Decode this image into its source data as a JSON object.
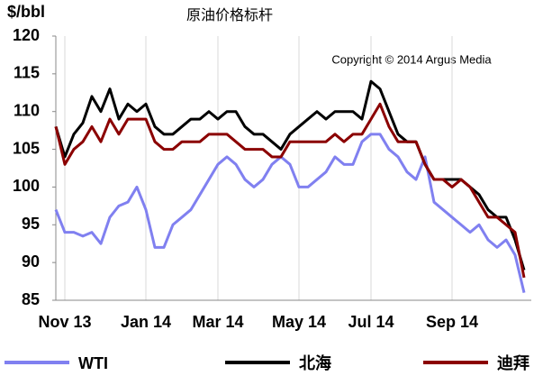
{
  "chart_data": {
    "type": "line",
    "title": "原油价格标杆",
    "y_label": "$/bbl",
    "annotation": "Copyright © 2014 Argus Media",
    "categories": [
      null,
      "Nov 13",
      null,
      null,
      null,
      null,
      null,
      null,
      null,
      null,
      "Jan 14",
      null,
      null,
      null,
      null,
      null,
      null,
      null,
      "Mar 14",
      null,
      null,
      null,
      null,
      null,
      null,
      null,
      null,
      "May 14",
      null,
      null,
      null,
      null,
      null,
      null,
      null,
      "Jul 14",
      null,
      null,
      null,
      null,
      null,
      null,
      null,
      null,
      "Sep 14",
      null,
      null,
      null,
      null,
      null,
      null,
      null,
      null
    ],
    "series": [
      {
        "name": "WTI",
        "color": "#8080f0",
        "values": [
          97,
          94,
          94,
          93.5,
          94,
          92.5,
          96,
          97.5,
          98,
          100,
          97,
          92,
          92,
          95,
          96,
          97,
          99,
          101,
          103,
          104,
          103,
          101,
          100,
          101,
          103,
          104,
          103,
          100,
          100,
          101,
          102,
          104,
          103,
          103,
          106,
          107,
          107,
          105,
          104,
          102,
          101,
          104,
          98,
          97,
          96,
          95,
          94,
          95,
          93,
          92,
          93,
          91,
          86
        ]
      },
      {
        "name": "北海",
        "color": "#000000",
        "values": [
          108,
          104,
          107,
          108.5,
          112,
          110,
          113,
          109,
          111,
          110,
          111,
          108,
          107,
          107,
          108,
          109,
          109,
          110,
          109,
          110,
          110,
          108,
          107,
          107,
          106,
          105,
          107,
          108,
          109,
          110,
          109,
          110,
          110,
          110,
          109,
          114,
          113,
          110,
          107,
          106,
          106,
          103,
          101,
          101,
          101,
          101,
          100,
          99,
          97,
          96,
          96,
          93,
          89
        ]
      },
      {
        "name": "迪拜",
        "color": "#8b0000",
        "values": [
          108,
          103,
          105,
          106,
          108,
          106,
          109,
          107,
          109,
          109,
          109,
          106,
          105,
          105,
          106,
          106,
          106,
          107,
          107,
          107,
          106,
          105,
          105,
          105,
          104,
          104,
          106,
          106,
          106,
          106,
          106,
          107,
          106,
          107,
          107,
          109,
          111,
          108,
          106,
          106,
          106,
          103,
          101,
          101,
          100,
          101,
          100,
          98,
          96,
          96,
          95,
          94,
          88
        ]
      }
    ],
    "ylim": [
      85,
      120
    ],
    "yticks": [
      85,
      90,
      95,
      100,
      105,
      110,
      115,
      120
    ],
    "legend": "bottom"
  }
}
